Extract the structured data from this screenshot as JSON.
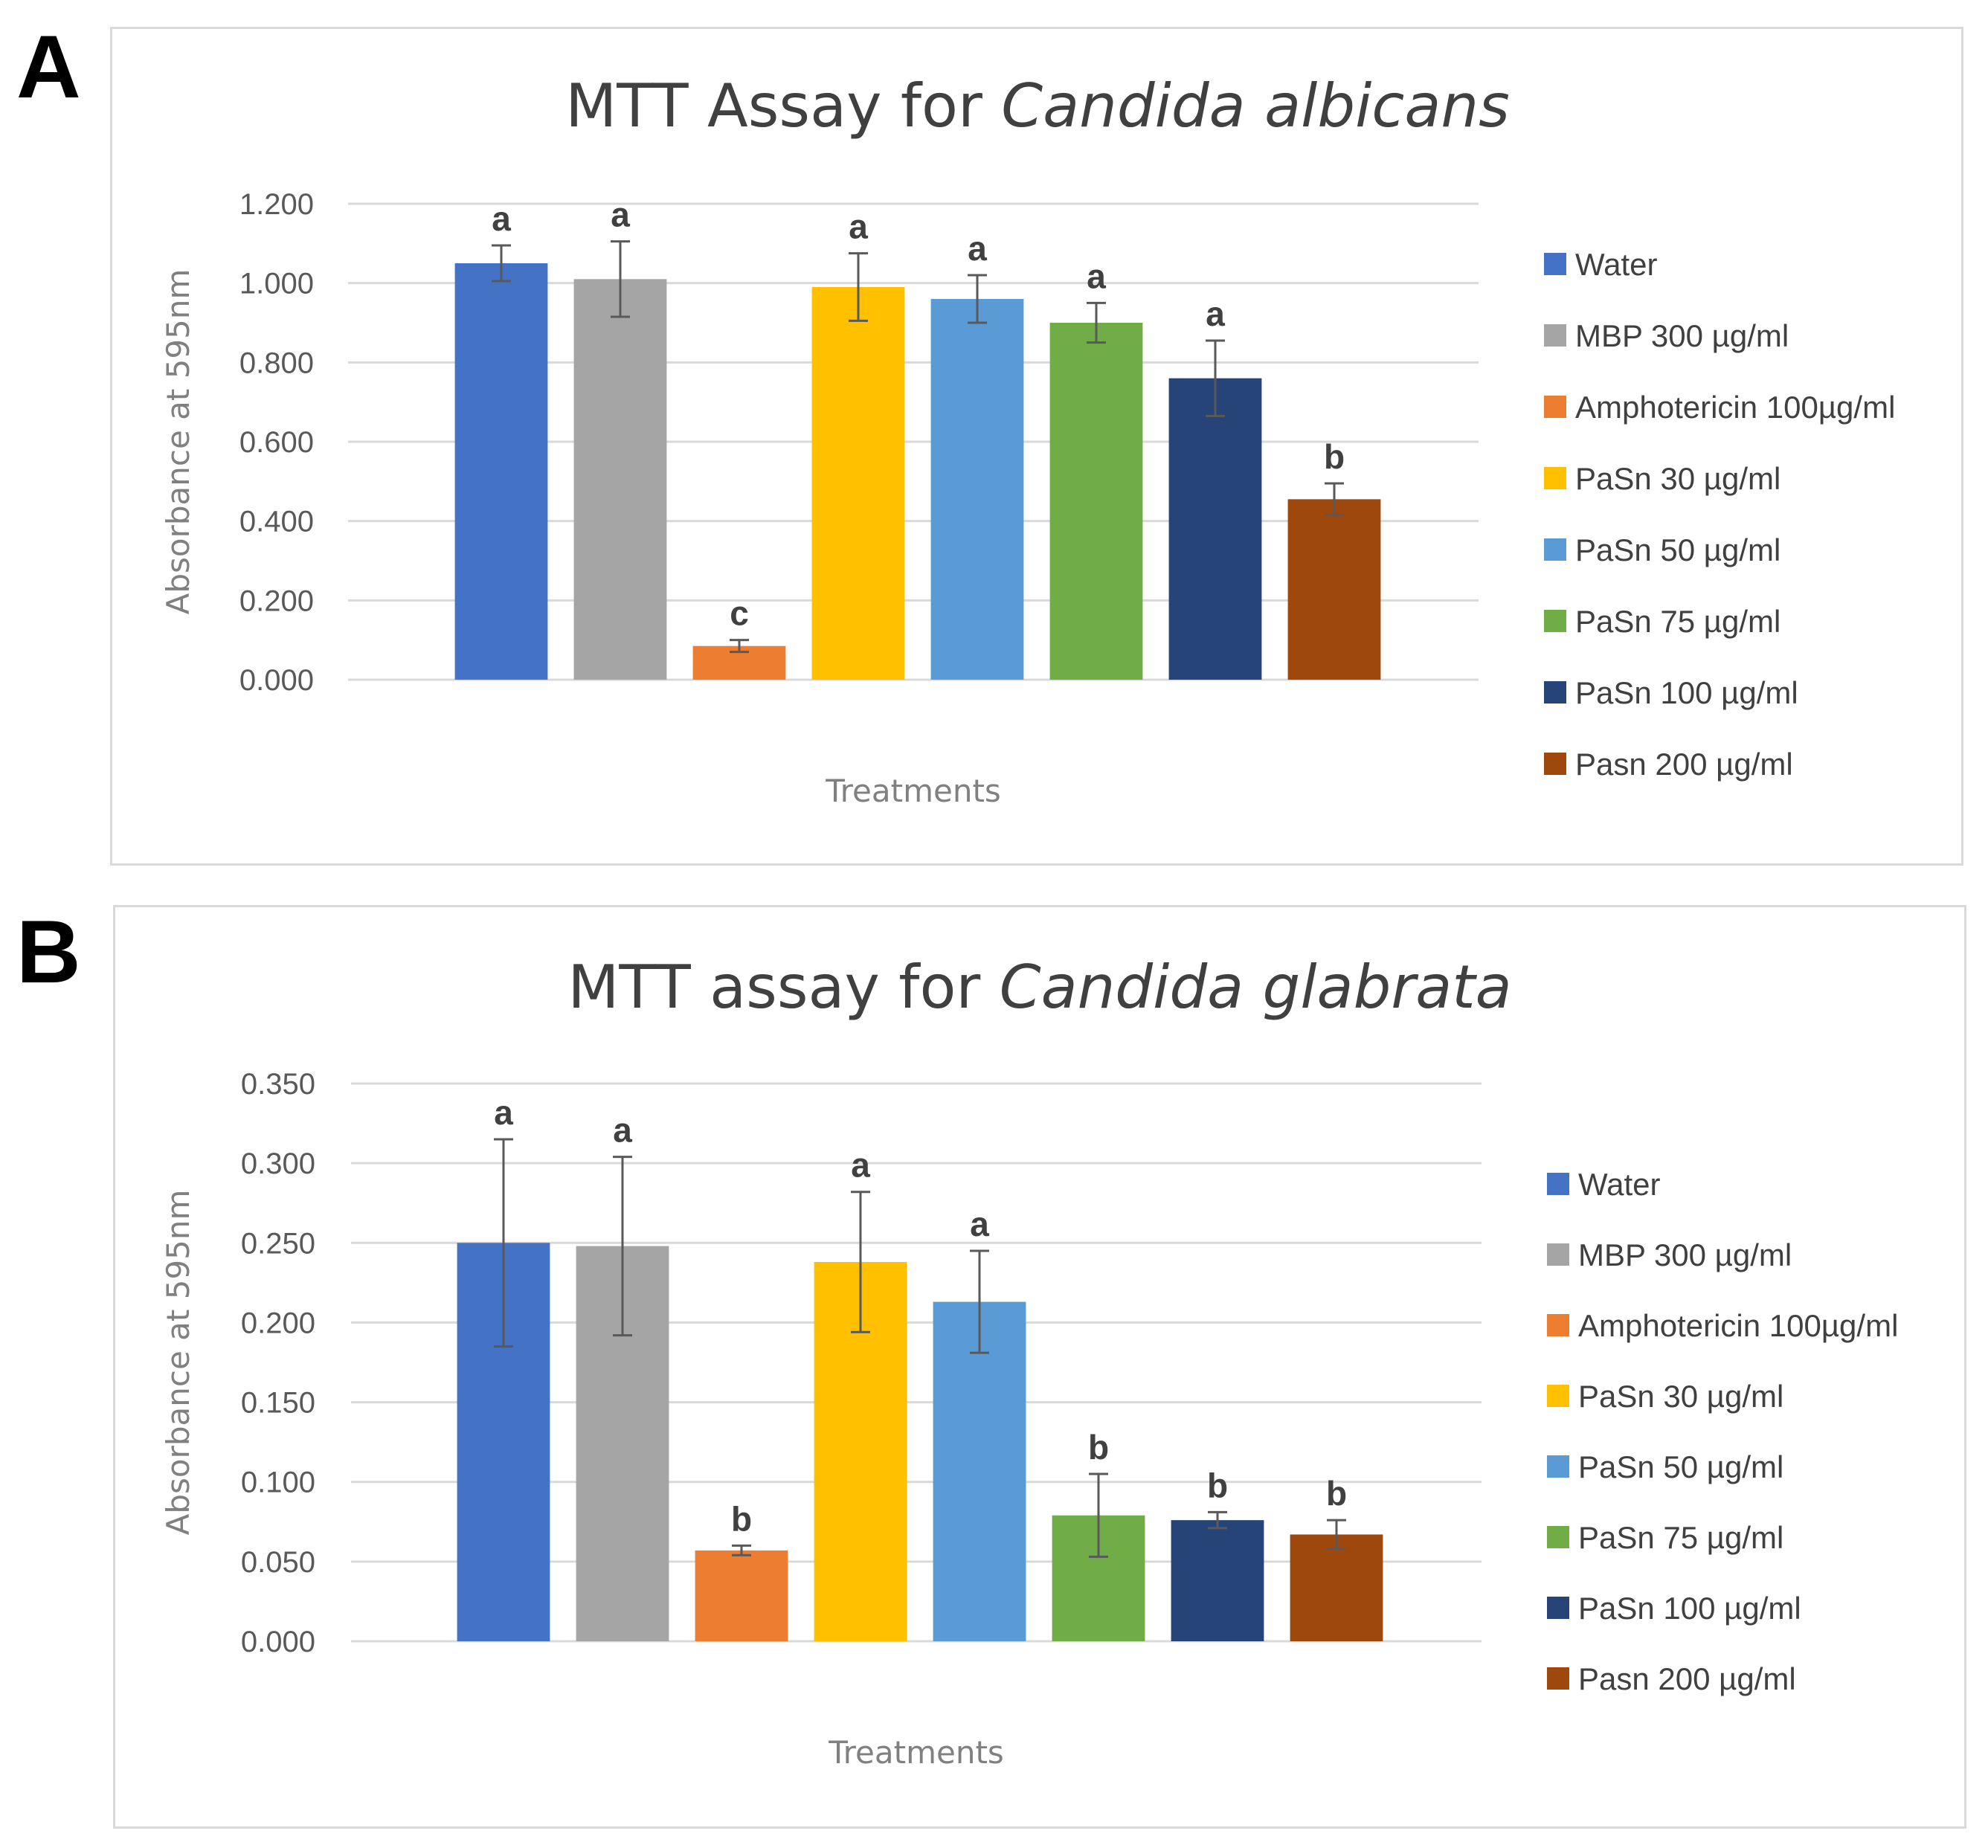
{
  "panels": [
    {
      "letter": "A"
    },
    {
      "letter": "B"
    }
  ],
  "chart_data": [
    {
      "type": "bar",
      "title_prefix": "MTT Assay for ",
      "title_italic": "Candida albicans",
      "xlabel": "Treatments",
      "ylabel": "Absorbance at 595nm",
      "ylim": [
        0,
        1.2
      ],
      "yticks": [
        "0.000",
        "0.200",
        "0.400",
        "0.600",
        "0.800",
        "1.000",
        "1.200"
      ],
      "ytick_values": [
        0,
        0.2,
        0.4,
        0.6,
        0.8,
        1.0,
        1.2
      ],
      "grid": true,
      "legend_position": "right",
      "categories": [
        "Water",
        "MBP 300 µg/ml",
        "Amphotericin 100µg/ml",
        "PaSn 30 µg/ml",
        "PaSn 50 µg/ml",
        "PaSn 75 µg/ml",
        "PaSn 100 µg/ml",
        "Pasn 200 µg/ml"
      ],
      "values": [
        1.05,
        1.01,
        0.085,
        0.99,
        0.96,
        0.9,
        0.76,
        0.455
      ],
      "errors": [
        0.045,
        0.095,
        0.015,
        0.085,
        0.06,
        0.05,
        0.095,
        0.04
      ],
      "significance": [
        "a",
        "a",
        "c",
        "a",
        "a",
        "a",
        "a",
        "b"
      ],
      "colors": [
        "#4472c4",
        "#a5a5a5",
        "#ed7d31",
        "#ffc000",
        "#5b9bd5",
        "#70ad47",
        "#264478",
        "#9e480e"
      ]
    },
    {
      "type": "bar",
      "title_prefix": "MTT assay for ",
      "title_italic": "Candida glabrata",
      "xlabel": "Treatments",
      "ylabel": "Absorbance at 595nm",
      "ylim": [
        0,
        0.35
      ],
      "yticks": [
        "0.000",
        "0.050",
        "0.100",
        "0.150",
        "0.200",
        "0.250",
        "0.300",
        "0.350"
      ],
      "ytick_values": [
        0,
        0.05,
        0.1,
        0.15,
        0.2,
        0.25,
        0.3,
        0.35
      ],
      "grid": true,
      "legend_position": "right",
      "categories": [
        "Water",
        "MBP 300 µg/ml",
        "Amphotericin 100µg/ml",
        "PaSn 30 µg/ml",
        "PaSn 50 µg/ml",
        "PaSn 75 µg/ml",
        "PaSn 100 µg/ml",
        "Pasn 200 µg/ml"
      ],
      "values": [
        0.25,
        0.248,
        0.057,
        0.238,
        0.213,
        0.079,
        0.076,
        0.067
      ],
      "errors": [
        0.065,
        0.056,
        0.003,
        0.044,
        0.032,
        0.026,
        0.005,
        0.009
      ],
      "significance": [
        "a",
        "a",
        "b",
        "a",
        "a",
        "b",
        "b",
        "b"
      ],
      "colors": [
        "#4472c4",
        "#a5a5a5",
        "#ed7d31",
        "#ffc000",
        "#5b9bd5",
        "#70ad47",
        "#264478",
        "#9e480e"
      ]
    }
  ]
}
